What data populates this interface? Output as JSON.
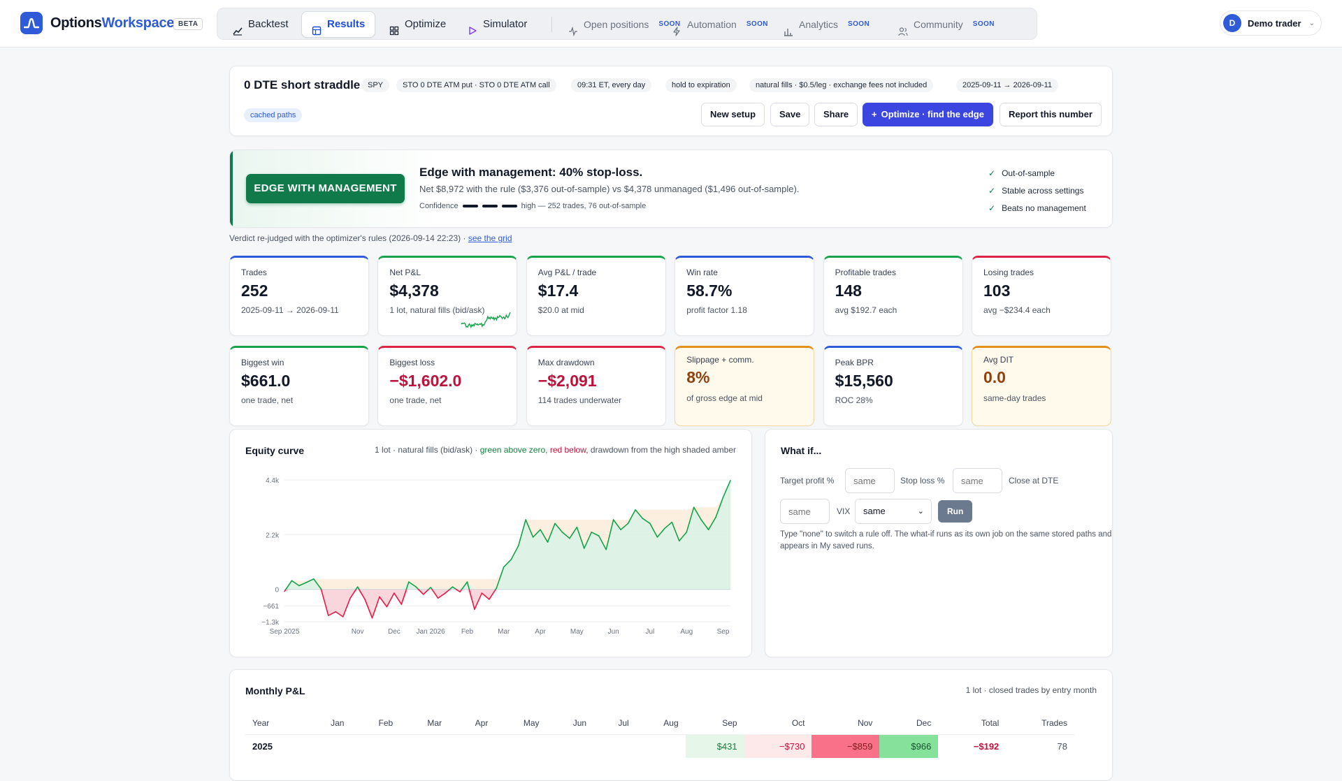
{
  "app": {
    "brand_part1": "Options",
    "brand_part2": "Workspace",
    "beta": "BETA"
  },
  "nav": [
    {
      "label": "Backtest",
      "icon": "chart-line-icon",
      "active": false,
      "soon": ""
    },
    {
      "label": "Results",
      "icon": "table-icon",
      "active": true,
      "soon": ""
    },
    {
      "label": "Optimize",
      "icon": "grid-icon",
      "active": false,
      "soon": ""
    },
    {
      "label": "Simulator",
      "icon": "play-icon",
      "active": false,
      "soon": ""
    },
    {
      "label": "Open positions",
      "icon": "pulse-icon",
      "active": false,
      "soon": "SOON"
    },
    {
      "label": "Automation",
      "icon": "bolt-icon",
      "active": false,
      "soon": "SOON"
    },
    {
      "label": "Analytics",
      "icon": "bar-chart-icon",
      "active": false,
      "soon": "SOON"
    },
    {
      "label": "Community",
      "icon": "users-icon",
      "active": false,
      "soon": "SOON"
    }
  ],
  "user": {
    "initial": "D",
    "name": "Demo trader"
  },
  "setup": {
    "title": "0 DTE short straddle",
    "chips": [
      "SPY",
      "STO 0 DTE ATM put · STO 0 DTE ATM call",
      "09:31 ET, every day",
      "hold to expiration",
      "natural fills · $0.5/leg · exchange fees not included",
      "2025-09-11 → 2026-09-11"
    ],
    "cached": "cached paths",
    "buttons": {
      "new_setup": "New setup",
      "save": "Save",
      "share": "Share",
      "optimize": "Optimize · find the edge",
      "report": "Report this number"
    }
  },
  "verdict": {
    "badge": "EDGE WITH MANAGEMENT",
    "headline": "Edge with management: 40% stop-loss.",
    "sub": "Net $8,972 with the rule ($3,376 out-of-sample) vs $4,378 unmanaged ($1,496 out-of-sample).",
    "confidence_label": "Confidence",
    "confidence_text": "high — 252 trades, 76 out-of-sample",
    "checks": [
      "Out-of-sample",
      "Stable across settings",
      "Beats no management"
    ],
    "rejudged": "Verdict re-judged with the optimizer's rules (2026-09-14 22:23) ·",
    "see_grid": "see the grid"
  },
  "stats": [
    {
      "label": "Trades",
      "value": "252",
      "sub": "2025-09-11 → 2026-09-11"
    },
    {
      "label": "Net P&L",
      "value": "$4,378",
      "sub": "1 lot, natural fills (bid/ask)"
    },
    {
      "label": "Avg P&L / trade",
      "value": "$17.4",
      "sub": "$20.0 at mid"
    },
    {
      "label": "Win rate",
      "value": "58.7%",
      "sub": "profit factor 1.18"
    },
    {
      "label": "Profitable trades",
      "value": "148",
      "sub": "avg $192.7 each"
    },
    {
      "label": "Losing trades",
      "value": "103",
      "sub": "avg −$234.4 each"
    },
    {
      "label": "Biggest win",
      "value": "$661.0",
      "sub": "one trade, net"
    },
    {
      "label": "Biggest loss",
      "value": "−$1,602.0",
      "sub": "one trade, net"
    },
    {
      "label": "Max drawdown",
      "value": "−$2,091",
      "sub": "114 trades underwater"
    },
    {
      "label": "Slippage + comm.",
      "value": "8%",
      "sub": "of gross edge at mid"
    },
    {
      "label": "Peak BPR",
      "value": "$15,560",
      "sub": "ROC 28%"
    },
    {
      "label": "Avg DIT",
      "value": "0.0",
      "sub": "same-day trades"
    }
  ],
  "equity": {
    "title": "Equity curve",
    "note_prefix": "1 lot · natural fills (bid/ask) ·",
    "note_green": "green above zero,",
    "note_red": "red below,",
    "note_suffix": "drawdown from the high shaded amber"
  },
  "chart_data": {
    "type": "line",
    "y_ticks": [
      "4.4k",
      "2.2k",
      "0",
      "−661",
      "−1.3k"
    ],
    "y_tick_values": [
      4400,
      2200,
      0,
      -661,
      -1300
    ],
    "ylim": [
      -1300,
      4400
    ],
    "x_ticks": [
      "Sep 2025",
      "Nov",
      "Dec",
      "Jan 2026",
      "Feb",
      "Mar",
      "Apr",
      "May",
      "Jun",
      "Jul",
      "Aug",
      "Sep"
    ],
    "x_tick_positions": [
      0,
      2,
      3,
      4,
      5,
      6,
      7,
      8,
      9,
      10,
      11,
      12
    ],
    "series": [
      {
        "x": [
          0,
          0.2,
          0.4,
          0.6,
          0.8,
          1.0,
          1.2,
          1.4,
          1.6,
          1.8,
          2.0,
          2.2,
          2.4,
          2.6,
          2.8,
          3.0,
          3.2,
          3.4,
          3.6,
          3.8,
          4.0,
          4.2,
          4.4,
          4.6,
          4.8,
          5.0,
          5.2,
          5.4,
          5.6,
          5.8,
          6.0,
          6.2,
          6.4,
          6.6,
          6.8,
          7.0,
          7.2,
          7.4,
          7.6,
          7.8,
          8.0,
          8.2,
          8.4,
          8.6,
          8.8,
          9.0,
          9.2,
          9.4,
          9.6,
          9.8,
          10.0,
          10.2,
          10.4,
          10.6,
          10.8,
          11.0,
          11.2,
          11.4,
          11.6,
          11.8,
          12.0,
          12.2
        ],
        "y": [
          -80,
          350,
          150,
          280,
          420,
          20,
          -1050,
          -900,
          -1100,
          -350,
          100,
          -400,
          -1150,
          -300,
          -700,
          -150,
          -600,
          300,
          100,
          -200,
          80,
          -350,
          -150,
          100,
          -100,
          300,
          -800,
          -150,
          -400,
          50,
          900,
          1200,
          1750,
          2800,
          2100,
          2400,
          1900,
          2650,
          2300,
          2050,
          2500,
          1650,
          2300,
          2150,
          1600,
          2800,
          2400,
          2650,
          3200,
          2850,
          2650,
          2100,
          2450,
          2700,
          1950,
          2300,
          3300,
          2800,
          2400,
          2900,
          3700,
          4378
        ]
      }
    ]
  },
  "whatif": {
    "title": "What if...",
    "target_label": "Target profit %",
    "target_placeholder": "same",
    "stop_label": "Stop loss %",
    "stop_placeholder": "same",
    "close_label": "Close at DTE",
    "close_placeholder": "same",
    "vix_label": "VIX",
    "vix_value": "same",
    "run": "Run",
    "help": "Type \"none\" to switch a rule off. The what-if runs as its own job on the same stored paths and appears in My saved runs."
  },
  "monthly": {
    "title": "Monthly P&L",
    "note": "1 lot · closed trades by entry month",
    "headers": [
      "Year",
      "Jan",
      "Feb",
      "Mar",
      "Apr",
      "May",
      "Jun",
      "Jul",
      "Aug",
      "Sep",
      "Oct",
      "Nov",
      "Dec",
      "Total",
      "Trades"
    ],
    "rows": [
      {
        "cells": [
          "2025",
          "",
          "",
          "",
          "",
          "",
          "",
          "",
          "",
          "$431",
          "−$730",
          "−$859",
          "$966",
          "−$192",
          "78"
        ]
      }
    ],
    "cell_colors": [
      "",
      "",
      "",
      "",
      "",
      "",
      "",
      "",
      "",
      "#e6f7ea",
      "#fde8ea",
      "#f87189",
      "#86e29b",
      "",
      ""
    ],
    "text_colors": [
      "#111827",
      "",
      "",
      "",
      "",
      "",
      "",
      "",
      "",
      "#15803d",
      "#be123c",
      "#7f1d1d",
      "#14532d",
      "#be123c",
      "#4b5563"
    ]
  }
}
